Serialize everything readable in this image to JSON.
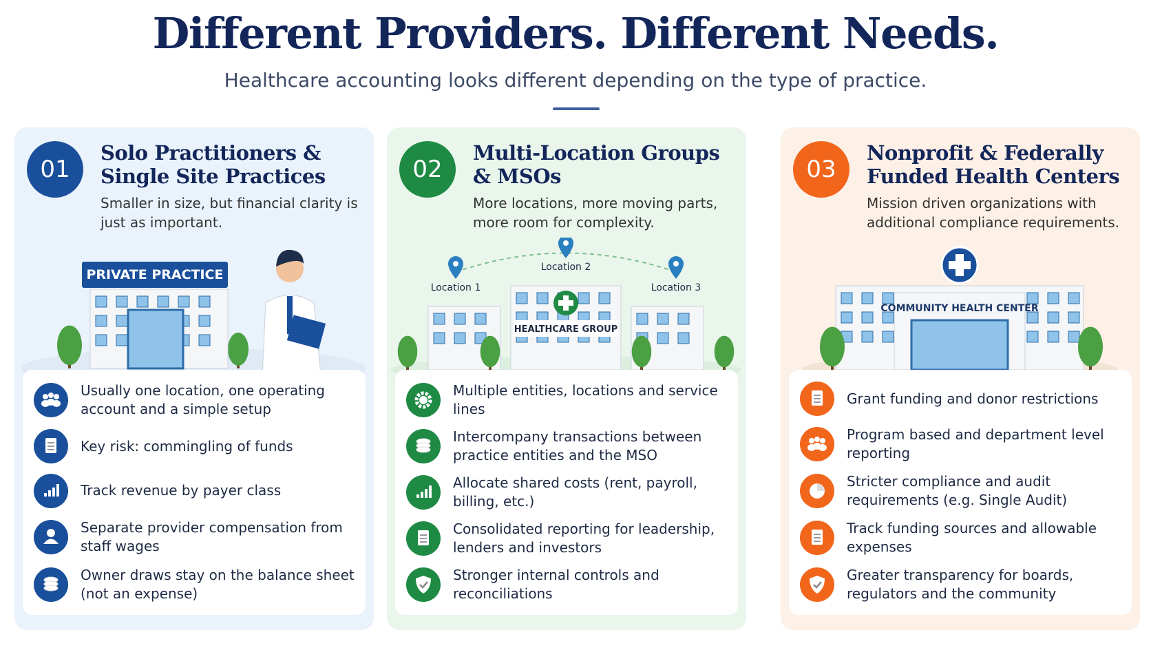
{
  "header": {
    "title": "Different Providers. Different Needs.",
    "subtitle": "Healthcare accounting looks different depending on the type of practice."
  },
  "columns": [
    {
      "number": "01",
      "color": "#1a4f9c",
      "title": "Solo Practitioners & Single Site Practices",
      "description": "Smaller in size, but financial clarity is just as important.",
      "illustration": {
        "labels": [
          "PRIVATE PRACTICE"
        ]
      },
      "items": [
        "Usually one location, one operating account and a simple setup",
        "Key risk: commingling of funds",
        "Track revenue by payer class",
        "Separate provider compensation from staff wages",
        "Owner draws stay on the balance sheet (not an expense)"
      ]
    },
    {
      "number": "02",
      "color": "#1e8a44",
      "title": "Multi-Location Groups & MSOs",
      "description": "More locations, more moving parts, more room for complexity.",
      "illustration": {
        "labels": [
          "Location 1",
          "Location 2",
          "Location 3",
          "HEALTHCARE GROUP"
        ]
      },
      "items": [
        "Multiple entities, locations and service lines",
        "Intercompany transactions between practice entities and the MSO",
        "Allocate shared costs (rent, payroll, billing, etc.)",
        "Consolidated reporting for leadership, lenders and investors",
        "Stronger internal controls and reconciliations"
      ]
    },
    {
      "number": "03",
      "color": "#f2661c",
      "title": "Nonprofit & Federally Funded Health Centers",
      "description": "Mission driven organizations with additional compliance requirements.",
      "illustration": {
        "labels": [
          "COMMUNITY HEALTH CENTER"
        ]
      },
      "items": [
        "Grant funding and donor restrictions",
        "Program based and department level reporting",
        "Stricter compliance and audit requirements (e.g. Single Audit)",
        "Track funding sources and allowable expenses",
        "Greater transparency for boards, regulators and the community"
      ]
    }
  ]
}
